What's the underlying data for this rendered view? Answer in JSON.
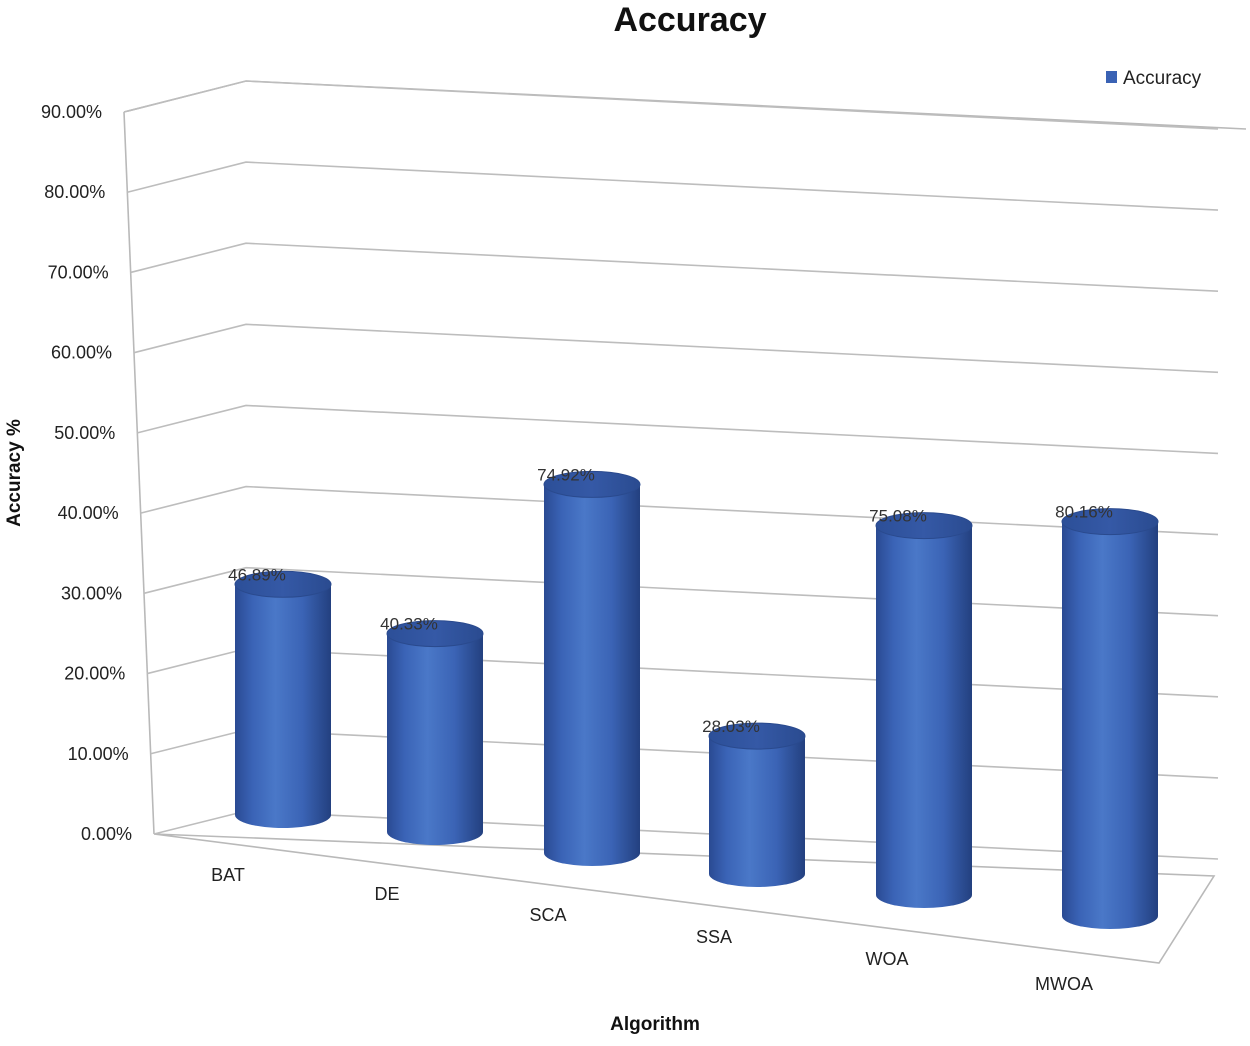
{
  "chart_data": {
    "type": "bar",
    "style": "3d-cylinder",
    "title": "Accuracy",
    "xlabel": "Algorithm",
    "ylabel": "Accuracy %",
    "categories": [
      "BAT",
      "DE",
      "SCA",
      "SSA",
      "WOA",
      "MWOA"
    ],
    "series": [
      {
        "name": "Accuracy",
        "values": [
          46.89,
          40.33,
          74.92,
          28.03,
          75.08,
          80.16
        ],
        "data_labels": [
          "46.89%",
          "40.33%",
          "74.92%",
          "28.03%",
          "75.08%",
          "80.16%"
        ],
        "color": "#3a62b4"
      }
    ],
    "yticks": [
      "0.00%",
      "10.00%",
      "20.00%",
      "30.00%",
      "40.00%",
      "50.00%",
      "60.00%",
      "70.00%",
      "80.00%",
      "90.00%"
    ],
    "ylim": [
      0,
      90
    ],
    "grid": true,
    "legend": "top-right"
  }
}
